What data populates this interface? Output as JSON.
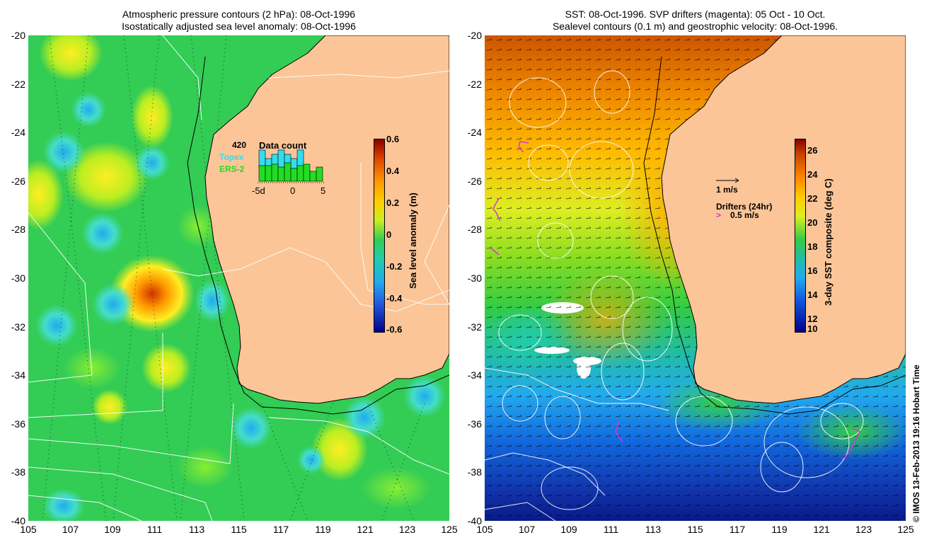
{
  "left_panel": {
    "title_line1": "Atmospheric pressure contours (2 hPa): 08-Oct-1996",
    "title_line2": "Isostatically adjusted sea level anomaly: 08-Oct-1996",
    "colorbar_label": "Sea level anomaly (m)",
    "colorbar_ticks": [
      "0.6",
      "0.4",
      "0.2",
      "0",
      "-0.2",
      "-0.4",
      "-0.6"
    ],
    "inset": {
      "count": "420",
      "topex_label": "Topex",
      "ers_label": "ERS-2",
      "title": "Data count",
      "ticks": [
        "-5d",
        "0",
        "5"
      ],
      "topex_color": "#33ddee",
      "ers_color": "#22dd22"
    }
  },
  "right_panel": {
    "title_line1": "SST: 08-Oct-1996. SVP drifters (magenta): 05 Oct - 10 Oct.",
    "title_line2": "Sealevel contours (0.1 m) and geostrophic velocity: 08-Oct-1996.",
    "colorbar_label": "3-day SST composite (deg C)",
    "colorbar_ticks": [
      "26",
      "24",
      "22",
      "20",
      "18",
      "16",
      "14",
      "12",
      "10"
    ],
    "vel_legend": "1 m/s",
    "drifter_legend_title": "Drifters (24hr)",
    "drifter_legend": "0.5 m/s",
    "drifter_color": "#dd33dd"
  },
  "axes": {
    "y_ticks": [
      "-20",
      "-22",
      "-24",
      "-26",
      "-28",
      "-30",
      "-32",
      "-34",
      "-36",
      "-38",
      "-40"
    ],
    "x_ticks": [
      "105",
      "107",
      "109",
      "111",
      "113",
      "115",
      "117",
      "119",
      "121",
      "123",
      "125"
    ]
  },
  "credit": "© IMOS 13-Feb-2013 19:16 Hobart Time",
  "colors": {
    "land": "#fbc597",
    "ocean_left": "#33cc55",
    "coast": "#000000"
  }
}
